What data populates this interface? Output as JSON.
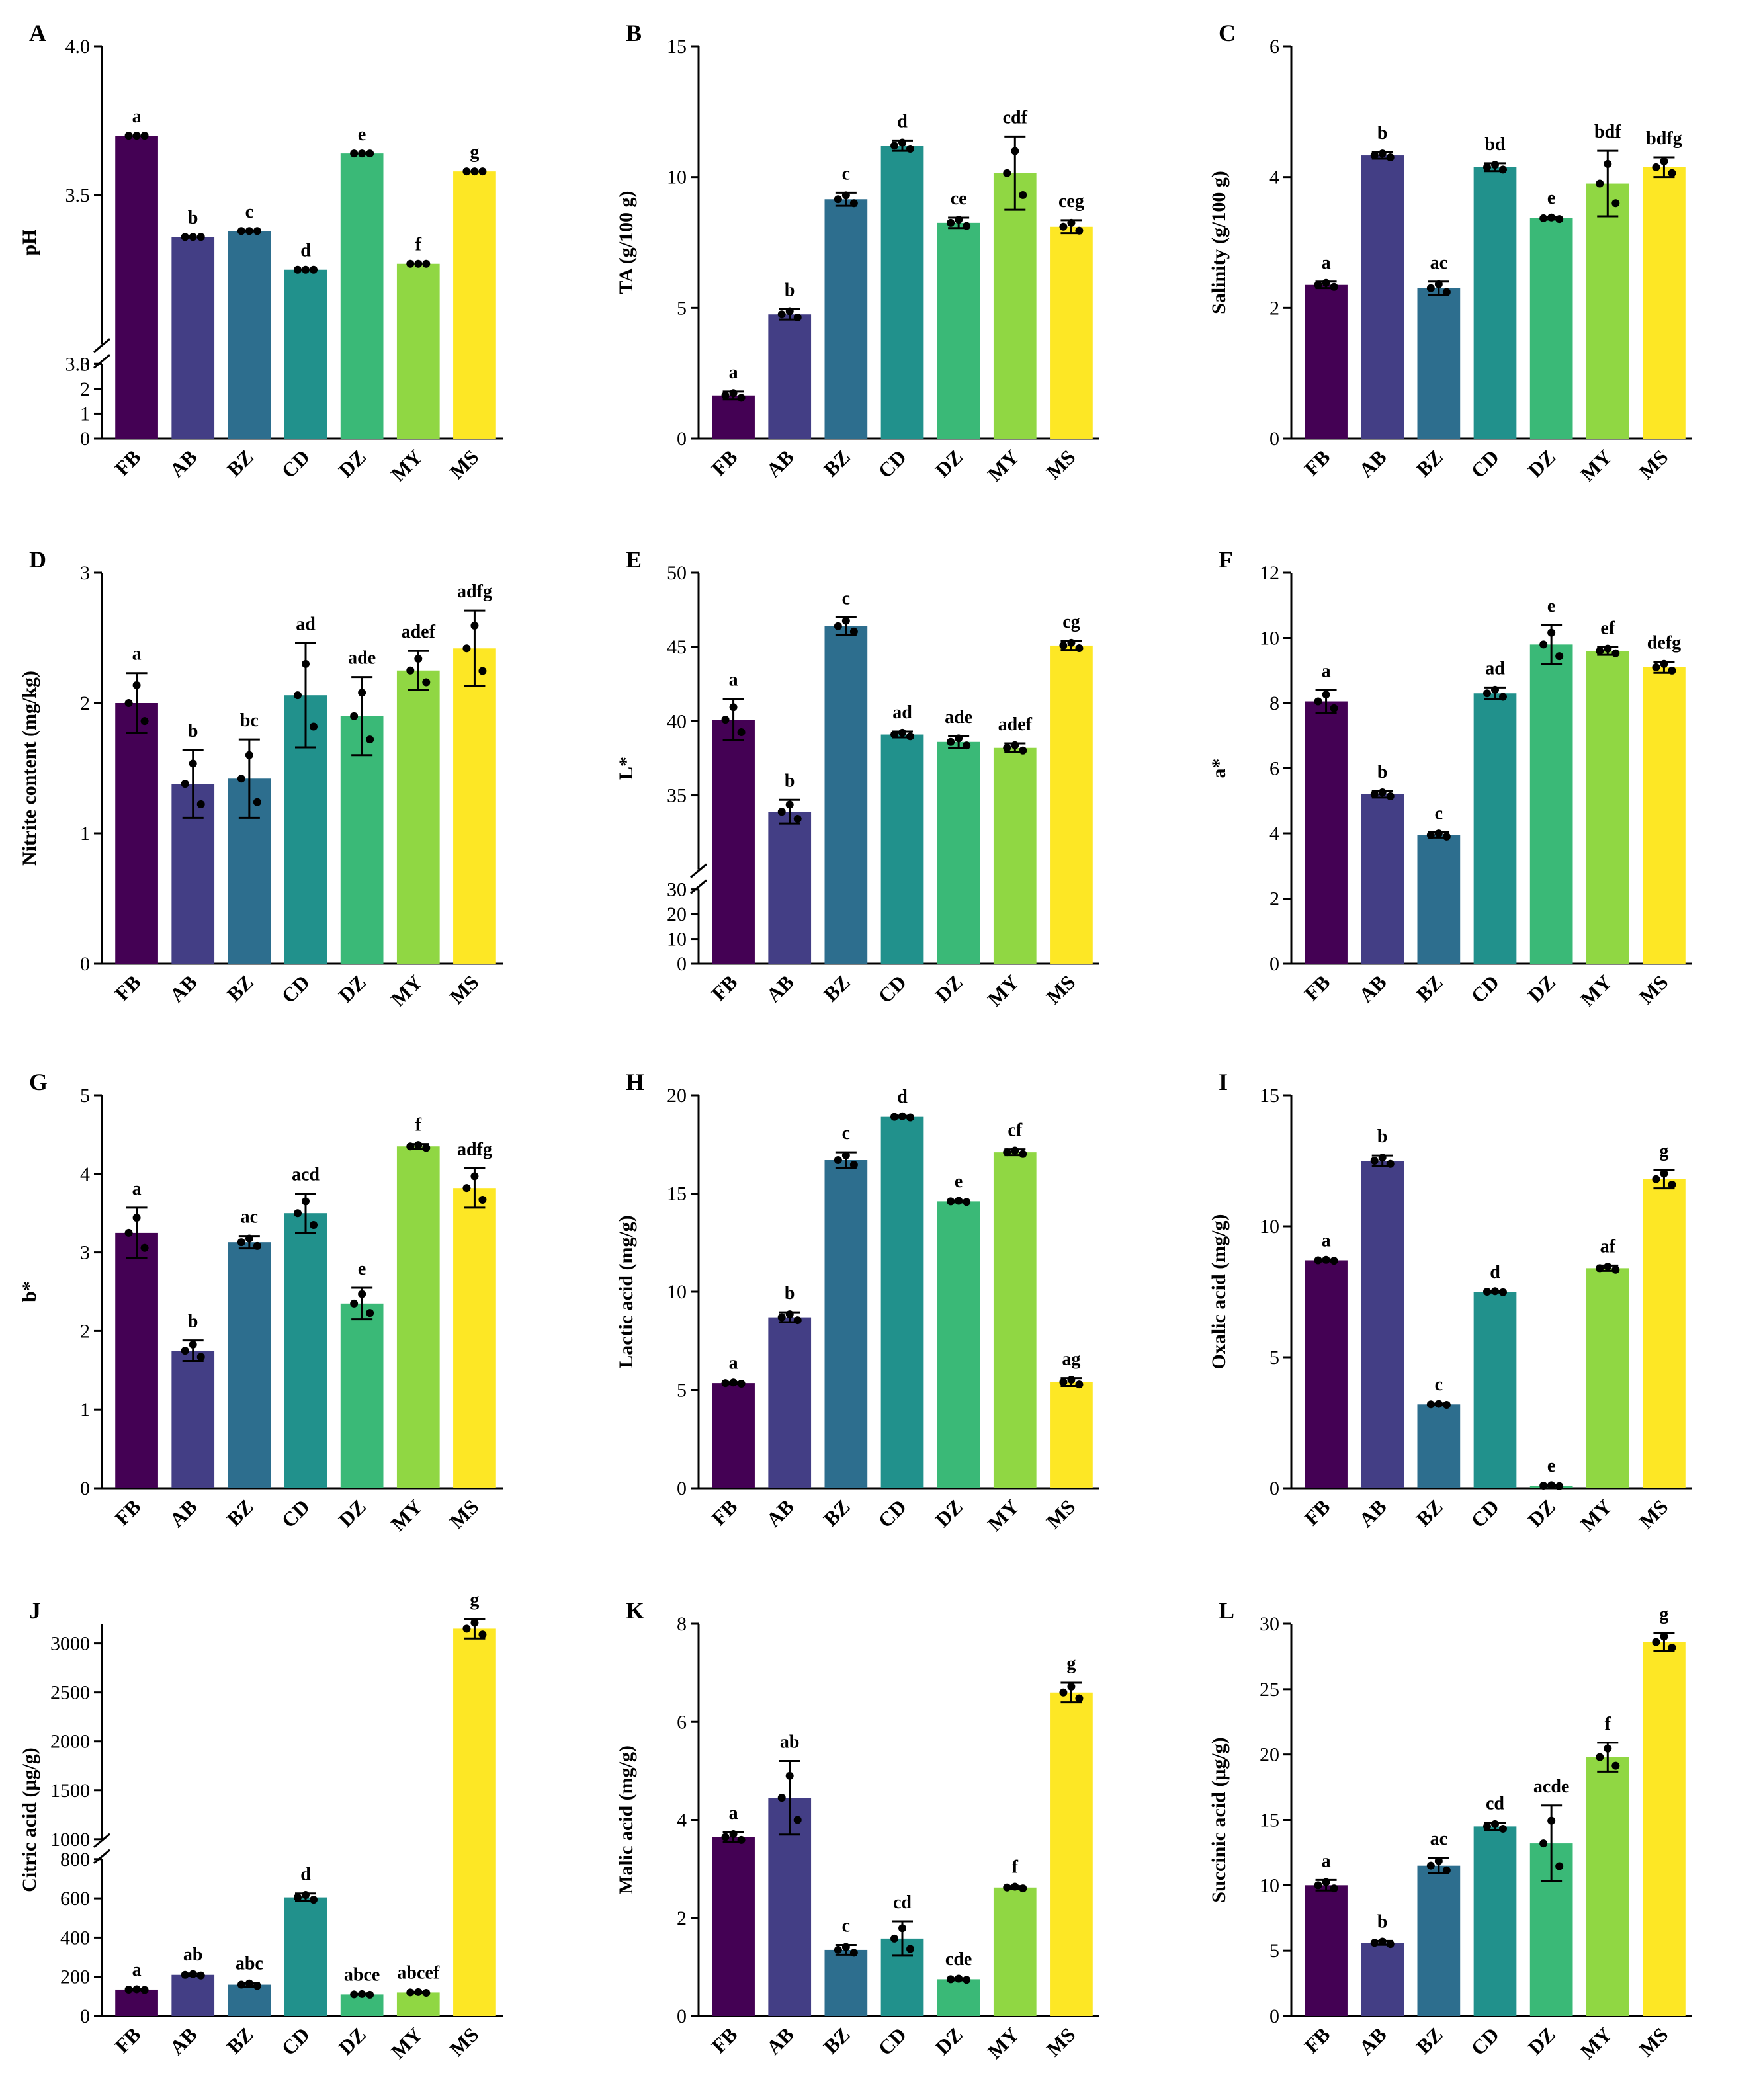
{
  "categories": [
    "FB",
    "AB",
    "BZ",
    "CD",
    "DZ",
    "MY",
    "MS"
  ],
  "colors": [
    "#440154",
    "#433e85",
    "#2d6e8e",
    "#21918c",
    "#3ab977",
    "#90d743",
    "#fde725"
  ],
  "chart_data": [
    {
      "panel": "A",
      "type": "bar",
      "ylabel": "pH",
      "values": [
        3.7,
        3.36,
        3.38,
        3.25,
        3.64,
        3.27,
        3.58
      ],
      "errors": [
        0,
        0,
        0,
        0,
        0,
        0,
        0
      ],
      "letters": [
        "a",
        "b",
        "c",
        "d",
        "e",
        "f",
        "g"
      ],
      "axis_break": true,
      "lower_range": [
        0,
        3
      ],
      "lower_ticks": [
        "0",
        "1",
        "2",
        "3"
      ],
      "upper_range": [
        3.0,
        4.0
      ],
      "upper_ticks": [
        "3.0",
        "3.5",
        "4.0"
      ]
    },
    {
      "panel": "B",
      "type": "bar",
      "ylabel": "TA (g/100 g)",
      "values": [
        1.65,
        4.75,
        9.15,
        11.2,
        8.25,
        10.15,
        8.1
      ],
      "errors": [
        0.15,
        0.2,
        0.25,
        0.2,
        0.2,
        1.4,
        0.25
      ],
      "letters": [
        "a",
        "b",
        "c",
        "d",
        "ce",
        "cdf",
        "ceg"
      ],
      "ylim": [
        0,
        15
      ],
      "yticks": [
        "0",
        "5",
        "10",
        "15"
      ]
    },
    {
      "panel": "C",
      "type": "bar",
      "ylabel": "Salinity (g/100 g)",
      "values": [
        2.35,
        4.33,
        2.3,
        4.15,
        3.37,
        3.9,
        4.15
      ],
      "errors": [
        0.05,
        0.05,
        0.1,
        0.06,
        0.02,
        0.5,
        0.15
      ],
      "letters": [
        "a",
        "b",
        "ac",
        "bd",
        "e",
        "bdf",
        "bdfg"
      ],
      "ylim": [
        0,
        6
      ],
      "yticks": [
        "0",
        "2",
        "4",
        "6"
      ]
    },
    {
      "panel": "D",
      "type": "bar",
      "ylabel": "Nitrite content  (mg/kg)",
      "values": [
        2.0,
        1.38,
        1.42,
        2.06,
        1.9,
        2.25,
        2.42
      ],
      "errors": [
        0.23,
        0.26,
        0.3,
        0.4,
        0.3,
        0.15,
        0.29
      ],
      "letters": [
        "a",
        "b",
        "bc",
        "ad",
        "ade",
        "adef",
        "adfg"
      ],
      "ylim": [
        0,
        3
      ],
      "yticks": [
        "0",
        "1",
        "2",
        "3"
      ]
    },
    {
      "panel": "E",
      "type": "bar",
      "ylabel": "L*",
      "values": [
        40.1,
        33.9,
        46.4,
        39.1,
        38.6,
        38.2,
        45.1
      ],
      "errors": [
        1.4,
        0.8,
        0.6,
        0.2,
        0.4,
        0.3,
        0.3
      ],
      "letters": [
        "a",
        "b",
        "c",
        "ad",
        "ade",
        "adef",
        "cg"
      ],
      "axis_break": true,
      "lower_range": [
        0,
        30
      ],
      "lower_ticks": [
        "0",
        "10",
        "20",
        "30"
      ],
      "upper_range": [
        30,
        50
      ],
      "upper_ticks": [
        "30",
        "35",
        "40",
        "45",
        "50"
      ]
    },
    {
      "panel": "F",
      "type": "bar",
      "ylabel": "a*",
      "values": [
        8.05,
        5.2,
        3.95,
        8.3,
        9.8,
        9.6,
        9.1
      ],
      "errors": [
        0.35,
        0.1,
        0.08,
        0.18,
        0.6,
        0.12,
        0.17
      ],
      "letters": [
        "a",
        "b",
        "c",
        "ad",
        "e",
        "ef",
        "defg"
      ],
      "ylim": [
        0,
        12
      ],
      "yticks": [
        "0",
        "2",
        "4",
        "6",
        "8",
        "10",
        "12"
      ]
    },
    {
      "panel": "G",
      "type": "bar",
      "ylabel": "b*",
      "values": [
        3.25,
        1.75,
        3.13,
        3.5,
        2.35,
        4.35,
        3.82
      ],
      "errors": [
        0.32,
        0.13,
        0.08,
        0.25,
        0.2,
        0.03,
        0.25
      ],
      "letters": [
        "a",
        "b",
        "ac",
        "acd",
        "e",
        "f",
        "adfg"
      ],
      "ylim": [
        0,
        5
      ],
      "yticks": [
        "0",
        "1",
        "2",
        "3",
        "4",
        "5"
      ]
    },
    {
      "panel": "H",
      "type": "bar",
      "ylabel": "Lactic acid (mg/g)",
      "values": [
        5.35,
        8.7,
        16.7,
        18.9,
        14.6,
        17.1,
        5.4
      ],
      "errors": [
        0.05,
        0.25,
        0.4,
        0.05,
        0.05,
        0.15,
        0.2
      ],
      "letters": [
        "a",
        "b",
        "c",
        "d",
        "e",
        "cf",
        "ag"
      ],
      "ylim": [
        0,
        20
      ],
      "yticks": [
        "0",
        "5",
        "10",
        "15",
        "20"
      ]
    },
    {
      "panel": "I",
      "type": "bar",
      "ylabel": "Oxalic acid (mg/g)",
      "values": [
        8.7,
        12.5,
        3.2,
        7.5,
        0.1,
        8.4,
        11.8
      ],
      "errors": [
        0.03,
        0.2,
        0.03,
        0.03,
        0.03,
        0.1,
        0.35
      ],
      "letters": [
        "a",
        "b",
        "c",
        "d",
        "e",
        "af",
        "g"
      ],
      "ylim": [
        0,
        15
      ],
      "yticks": [
        "0",
        "5",
        "10",
        "15"
      ]
    },
    {
      "panel": "J",
      "type": "bar",
      "ylabel": "Citric acid (μg/g)",
      "values": [
        135,
        210,
        160,
        605,
        110,
        120,
        3150
      ],
      "errors": [
        3,
        6,
        10,
        20,
        3,
        3,
        100
      ],
      "letters": [
        "a",
        "ab",
        "abc",
        "d",
        "abce",
        "abcef",
        "g"
      ],
      "axis_break": true,
      "lower_range": [
        0,
        800
      ],
      "lower_ticks": [
        "0",
        "200",
        "400",
        "600",
        "800"
      ],
      "upper_range": [
        1000,
        3200
      ],
      "upper_ticks": [
        "1000",
        "1500",
        "2000",
        "2500",
        "3000"
      ]
    },
    {
      "panel": "K",
      "type": "bar",
      "ylabel": "Malic acid (mg/g)",
      "values": [
        3.65,
        4.45,
        1.35,
        1.58,
        0.75,
        2.62,
        6.6
      ],
      "errors": [
        0.1,
        0.75,
        0.1,
        0.35,
        0.02,
        0.03,
        0.2
      ],
      "letters": [
        "a",
        "ab",
        "c",
        "cd",
        "cde",
        "f",
        "g"
      ],
      "ylim": [
        0,
        8
      ],
      "yticks": [
        "0",
        "2",
        "4",
        "6",
        "8"
      ]
    },
    {
      "panel": "L",
      "type": "bar",
      "ylabel": "Succinic acid (μg/g)",
      "values": [
        10.0,
        5.6,
        11.5,
        14.5,
        13.2,
        19.8,
        28.6
      ],
      "errors": [
        0.4,
        0.15,
        0.6,
        0.3,
        2.9,
        1.1,
        0.7
      ],
      "letters": [
        "a",
        "b",
        "ac",
        "cd",
        "acde",
        "f",
        "g"
      ],
      "ylim": [
        0,
        30
      ],
      "yticks": [
        "0",
        "5",
        "10",
        "15",
        "20",
        "25",
        "30"
      ]
    }
  ]
}
